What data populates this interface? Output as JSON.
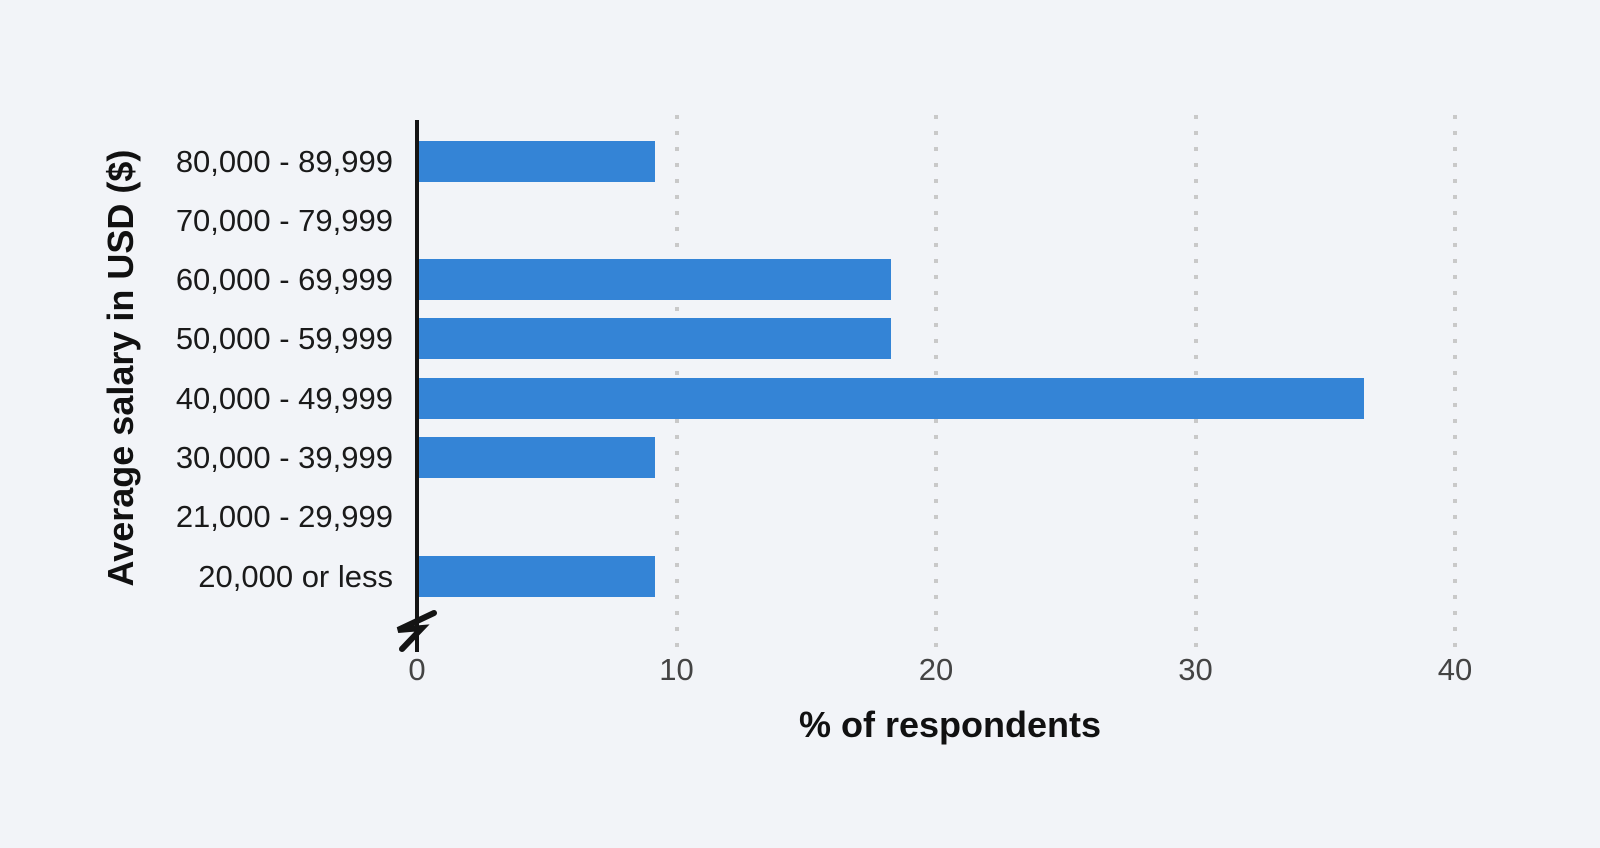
{
  "chart_data": {
    "type": "bar",
    "orientation": "horizontal",
    "title": "",
    "xlabel": "% of respondents",
    "ylabel": "Average salary in USD ($)",
    "categories": [
      "80,000 - 89,999",
      "70,000 - 79,999",
      "60,000 - 69,999",
      "50,000 - 59,999",
      "40,000 - 49,999",
      "30,000 - 39,999",
      "21,000 - 29,999",
      "20,000 or less"
    ],
    "values": [
      9.1,
      0,
      18.2,
      18.2,
      36.4,
      9.1,
      0,
      9.1
    ],
    "xticks": [
      0,
      10,
      20,
      30,
      40
    ],
    "xtick_labels": [
      "0",
      "10",
      "20",
      "30",
      "40"
    ],
    "xlim": [
      0,
      42
    ],
    "grid": "vertical-dotted",
    "legend": "none",
    "axis_break_on_x_zero": true,
    "colors": {
      "background": "#f2f4f8",
      "bar": "#3484d6",
      "gridline": "#c9c9c9",
      "axis_line": "#141414",
      "category_text": "#1a1a1a",
      "tick_text": "#444444",
      "title_text": "#111111"
    }
  }
}
